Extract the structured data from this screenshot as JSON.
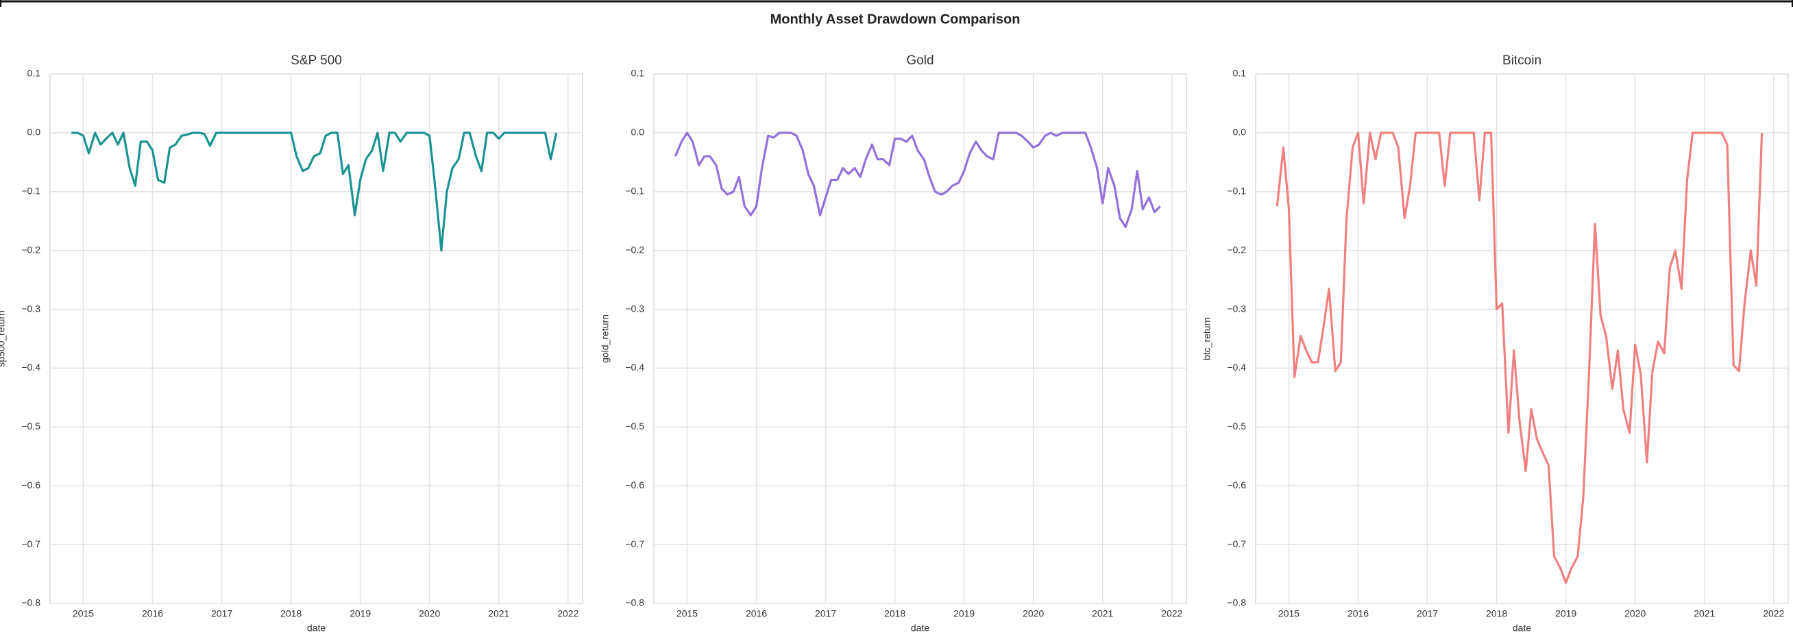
{
  "title": "Monthly Asset Drawdown Comparison",
  "chart_data": [
    {
      "type": "line",
      "title": "S&P 500",
      "x_label": "date",
      "y_label": "sp500_return",
      "color": "#1a9391",
      "grid": true,
      "xlim": [
        2014.52,
        2022.21
      ],
      "xticks": [
        2015,
        2016,
        2017,
        2018,
        2019,
        2020,
        2021,
        2022
      ],
      "ylim": [
        -0.8,
        0.1
      ],
      "yticks": [
        0.1,
        {
          "value": 0,
          "label": "0.0"
        },
        {
          "value": -0.1,
          "label": "−0.1"
        },
        {
          "value": -0.2,
          "label": "−0.2"
        },
        {
          "value": -0.3,
          "label": "−0.3"
        },
        {
          "value": -0.4,
          "label": "−0.4"
        },
        {
          "value": -0.5,
          "label": "−0.5"
        },
        {
          "value": -0.6,
          "label": "−0.6"
        },
        {
          "value": -0.7,
          "label": "−0.7"
        },
        {
          "value": -0.8,
          "label": "−0.8"
        }
      ],
      "x": [
        2014.83,
        2014.92,
        2015.0,
        2015.08,
        2015.17,
        2015.25,
        2015.33,
        2015.42,
        2015.5,
        2015.58,
        2015.67,
        2015.75,
        2015.83,
        2015.92,
        2016.0,
        2016.08,
        2016.17,
        2016.25,
        2016.33,
        2016.42,
        2016.5,
        2016.58,
        2016.67,
        2016.75,
        2016.83,
        2016.92,
        2017.0,
        2017.08,
        2017.17,
        2017.25,
        2017.33,
        2017.42,
        2017.5,
        2017.58,
        2017.67,
        2017.75,
        2017.83,
        2017.92,
        2018.0,
        2018.08,
        2018.17,
        2018.25,
        2018.33,
        2018.42,
        2018.5,
        2018.58,
        2018.67,
        2018.75,
        2018.83,
        2018.92,
        2019.0,
        2019.08,
        2019.17,
        2019.25,
        2019.33,
        2019.42,
        2019.5,
        2019.58,
        2019.67,
        2019.75,
        2019.83,
        2019.92,
        2020.0,
        2020.08,
        2020.17,
        2020.25,
        2020.33,
        2020.42,
        2020.5,
        2020.58,
        2020.67,
        2020.75,
        2020.83,
        2020.92,
        2021.0,
        2021.08,
        2021.17,
        2021.25,
        2021.33,
        2021.42,
        2021.5,
        2021.58,
        2021.67,
        2021.75,
        2021.83
      ],
      "values": [
        0,
        0,
        -0.005,
        -0.035,
        0,
        -0.02,
        -0.01,
        0,
        -0.02,
        0,
        -0.06,
        -0.09,
        -0.015,
        -0.015,
        -0.03,
        -0.08,
        -0.085,
        -0.025,
        -0.02,
        -0.005,
        -0.003,
        0,
        0,
        -0.002,
        -0.022,
        0,
        0,
        0,
        0,
        0,
        0,
        0,
        0,
        0,
        0,
        0,
        0,
        0,
        0,
        -0.04,
        -0.065,
        -0.06,
        -0.04,
        -0.035,
        -0.005,
        0,
        0,
        -0.07,
        -0.055,
        -0.14,
        -0.08,
        -0.045,
        -0.03,
        0,
        -0.065,
        0,
        0,
        -0.015,
        0,
        0,
        0,
        0,
        -0.005,
        -0.09,
        -0.2,
        -0.1,
        -0.06,
        -0.045,
        0,
        0,
        -0.04,
        -0.065,
        0,
        0,
        -0.01,
        0,
        0,
        0,
        0,
        0,
        0,
        0,
        0,
        -0.045,
        0
      ]
    },
    {
      "type": "line",
      "title": "Gold",
      "x_label": "date",
      "y_label": "gold_return",
      "color": "#9370db",
      "grid": true,
      "xlim": [
        2014.52,
        2022.21
      ],
      "xticks": [
        2015,
        2016,
        2017,
        2018,
        2019,
        2020,
        2021,
        2022
      ],
      "ylim": [
        -0.8,
        0.1
      ],
      "yticks": [
        0.1,
        {
          "value": 0,
          "label": "0.0"
        },
        {
          "value": -0.1,
          "label": "−0.1"
        },
        {
          "value": -0.2,
          "label": "−0.2"
        },
        {
          "value": -0.3,
          "label": "−0.3"
        },
        {
          "value": -0.4,
          "label": "−0.4"
        },
        {
          "value": -0.5,
          "label": "−0.5"
        },
        {
          "value": -0.6,
          "label": "−0.6"
        },
        {
          "value": -0.7,
          "label": "−0.7"
        },
        {
          "value": -0.8,
          "label": "−0.8"
        }
      ],
      "x": [
        2014.83,
        2014.92,
        2015.0,
        2015.08,
        2015.17,
        2015.25,
        2015.33,
        2015.42,
        2015.5,
        2015.58,
        2015.67,
        2015.75,
        2015.83,
        2015.92,
        2016.0,
        2016.08,
        2016.17,
        2016.25,
        2016.33,
        2016.42,
        2016.5,
        2016.58,
        2016.67,
        2016.75,
        2016.83,
        2016.92,
        2017.0,
        2017.08,
        2017.17,
        2017.25,
        2017.33,
        2017.42,
        2017.5,
        2017.58,
        2017.67,
        2017.75,
        2017.83,
        2017.92,
        2018.0,
        2018.08,
        2018.17,
        2018.25,
        2018.33,
        2018.42,
        2018.5,
        2018.58,
        2018.67,
        2018.75,
        2018.83,
        2018.92,
        2019.0,
        2019.08,
        2019.17,
        2019.25,
        2019.33,
        2019.42,
        2019.5,
        2019.58,
        2019.67,
        2019.75,
        2019.83,
        2019.92,
        2020.0,
        2020.08,
        2020.17,
        2020.25,
        2020.33,
        2020.42,
        2020.5,
        2020.58,
        2020.67,
        2020.75,
        2020.83,
        2020.92,
        2021.0,
        2021.08,
        2021.17,
        2021.25,
        2021.33,
        2021.42,
        2021.5,
        2021.58,
        2021.67,
        2021.75,
        2021.83
      ],
      "values": [
        -0.04,
        -0.015,
        0,
        -0.015,
        -0.055,
        -0.04,
        -0.04,
        -0.055,
        -0.095,
        -0.105,
        -0.1,
        -0.075,
        -0.125,
        -0.14,
        -0.125,
        -0.06,
        -0.005,
        -0.008,
        0,
        0,
        0,
        -0.005,
        -0.03,
        -0.07,
        -0.09,
        -0.14,
        -0.11,
        -0.08,
        -0.08,
        -0.06,
        -0.07,
        -0.06,
        -0.075,
        -0.045,
        -0.02,
        -0.045,
        -0.045,
        -0.055,
        -0.01,
        -0.01,
        -0.015,
        -0.005,
        -0.03,
        -0.045,
        -0.075,
        -0.1,
        -0.105,
        -0.1,
        -0.09,
        -0.085,
        -0.065,
        -0.035,
        -0.015,
        -0.03,
        -0.04,
        -0.045,
        0,
        0,
        0,
        0,
        -0.005,
        -0.015,
        -0.025,
        -0.02,
        -0.005,
        0,
        -0.005,
        0,
        0,
        0,
        0,
        0,
        -0.025,
        -0.06,
        -0.12,
        -0.06,
        -0.09,
        -0.145,
        -0.16,
        -0.13,
        -0.065,
        -0.13,
        -0.11,
        -0.135,
        -0.125
      ]
    },
    {
      "type": "line",
      "title": "Bitcoin",
      "x_label": "date",
      "y_label": "btc_return",
      "color": "#f08080",
      "grid": true,
      "xlim": [
        2014.52,
        2022.21
      ],
      "xticks": [
        2015,
        2016,
        2017,
        2018,
        2019,
        2020,
        2021,
        2022
      ],
      "ylim": [
        -0.8,
        0.1
      ],
      "yticks": [
        0.1,
        {
          "value": 0,
          "label": "0.0"
        },
        {
          "value": -0.1,
          "label": "−0.1"
        },
        {
          "value": -0.2,
          "label": "−0.2"
        },
        {
          "value": -0.3,
          "label": "−0.3"
        },
        {
          "value": -0.4,
          "label": "−0.4"
        },
        {
          "value": -0.5,
          "label": "−0.5"
        },
        {
          "value": -0.6,
          "label": "−0.6"
        },
        {
          "value": -0.7,
          "label": "−0.7"
        },
        {
          "value": -0.8,
          "label": "−0.8"
        }
      ],
      "x": [
        2014.83,
        2014.92,
        2015.0,
        2015.08,
        2015.17,
        2015.25,
        2015.33,
        2015.42,
        2015.5,
        2015.58,
        2015.67,
        2015.75,
        2015.83,
        2015.92,
        2016.0,
        2016.08,
        2016.17,
        2016.25,
        2016.33,
        2016.42,
        2016.5,
        2016.58,
        2016.67,
        2016.75,
        2016.83,
        2016.92,
        2017.0,
        2017.08,
        2017.17,
        2017.25,
        2017.33,
        2017.42,
        2017.5,
        2017.58,
        2017.67,
        2017.75,
        2017.83,
        2017.92,
        2018.0,
        2018.08,
        2018.17,
        2018.25,
        2018.33,
        2018.42,
        2018.5,
        2018.58,
        2018.67,
        2018.75,
        2018.83,
        2018.92,
        2019.0,
        2019.08,
        2019.17,
        2019.25,
        2019.33,
        2019.42,
        2019.5,
        2019.58,
        2019.67,
        2019.75,
        2019.83,
        2019.92,
        2020.0,
        2020.08,
        2020.17,
        2020.25,
        2020.33,
        2020.42,
        2020.5,
        2020.58,
        2020.67,
        2020.75,
        2020.83,
        2020.92,
        2021.0,
        2021.08,
        2021.17,
        2021.25,
        2021.33,
        2021.42,
        2021.5,
        2021.58,
        2021.67,
        2021.75,
        2021.83
      ],
      "values": [
        -0.125,
        -0.025,
        -0.13,
        -0.415,
        -0.345,
        -0.37,
        -0.39,
        -0.39,
        -0.33,
        -0.265,
        -0.405,
        -0.39,
        -0.15,
        -0.025,
        0,
        -0.12,
        0,
        -0.045,
        0,
        0,
        0,
        -0.025,
        -0.145,
        -0.09,
        0,
        0,
        0,
        0,
        0,
        -0.09,
        0,
        0,
        0,
        0,
        0,
        -0.115,
        0,
        0,
        -0.3,
        -0.29,
        -0.51,
        -0.37,
        -0.49,
        -0.575,
        -0.47,
        -0.52,
        -0.545,
        -0.565,
        -0.72,
        -0.74,
        -0.765,
        -0.74,
        -0.72,
        -0.62,
        -0.42,
        -0.155,
        -0.31,
        -0.345,
        -0.435,
        -0.37,
        -0.47,
        -0.51,
        -0.36,
        -0.41,
        -0.56,
        -0.405,
        -0.355,
        -0.375,
        -0.23,
        -0.2,
        -0.265,
        -0.08,
        0,
        0,
        0,
        0,
        0,
        0,
        -0.02,
        -0.395,
        -0.405,
        -0.29,
        -0.2,
        -0.26,
        0
      ]
    }
  ]
}
